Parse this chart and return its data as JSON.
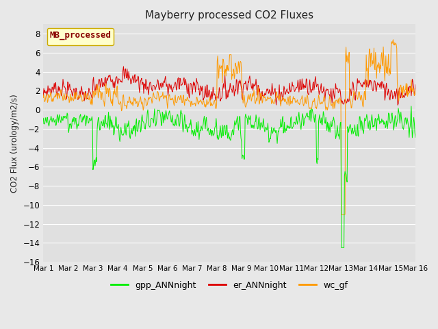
{
  "title": "Mayberry processed CO2 Fluxes",
  "ylabel": "CO2 Flux (urology/m2/s)",
  "ylim": [
    -16,
    9
  ],
  "yticks": [
    -16,
    -14,
    -12,
    -10,
    -8,
    -6,
    -4,
    -2,
    0,
    2,
    4,
    6,
    8
  ],
  "legend_label": "MB_processed",
  "legend_box_facecolor": "#ffffcc",
  "legend_box_edgecolor": "#ccaa00",
  "legend_text_color": "#880000",
  "fig_facecolor": "#e8e8e8",
  "ax_facecolor": "#e0e0e0",
  "grid_color": "#ffffff",
  "colors": {
    "gpp": "#00ee00",
    "er": "#dd0000",
    "wc": "#ff9900"
  },
  "legend_entries": [
    {
      "label": "gpp_ANNnight",
      "color": "#00ee00"
    },
    {
      "label": "er_ANNnight",
      "color": "#dd0000"
    },
    {
      "label": "wc_gf",
      "color": "#ff9900"
    }
  ],
  "n_days": 15,
  "pts_per_day": 48,
  "xtick_positions": [
    0,
    1,
    2,
    3,
    4,
    5,
    6,
    7,
    8,
    9,
    10,
    11,
    12,
    13,
    14,
    15
  ],
  "xtick_labels": [
    "Mar 1",
    "Mar 2",
    "Mar 3",
    "Mar 4",
    "Mar 5",
    "Mar 6",
    "Mar 7",
    "Mar 8",
    "Mar 9",
    "Mar 10",
    "Mar 11",
    "Mar 12",
    "Mar 13",
    "Mar 14",
    "Mar 15",
    "Mar 16"
  ]
}
